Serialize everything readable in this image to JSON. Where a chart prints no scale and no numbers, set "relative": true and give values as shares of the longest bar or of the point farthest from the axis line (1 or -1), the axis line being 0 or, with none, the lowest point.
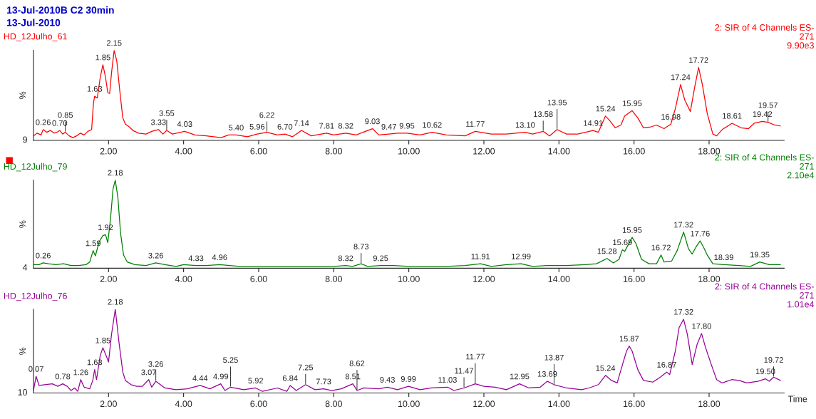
{
  "chart_data": [
    {
      "type": "line",
      "title": "13-Jul-2010B C2 30min",
      "subtitle": "13-Jul-2010",
      "ylabel": "%",
      "relative": true,
      "xlim": [
        0,
        20
      ],
      "xticks": [
        {
          "value": 2,
          "label": "2.00"
        },
        {
          "value": 4,
          "label": "4.00"
        },
        {
          "value": 6,
          "label": "6.00"
        },
        {
          "value": 8,
          "label": "8.00"
        },
        {
          "value": 10,
          "label": "10.00"
        },
        {
          "value": 12,
          "label": "12.00"
        },
        {
          "value": 14,
          "label": "14.00"
        },
        {
          "value": 16,
          "label": "16.00"
        },
        {
          "value": 18,
          "label": "18.00"
        }
      ],
      "series": [
        {
          "name": "HD_12Julho_61",
          "color": "#ff0000",
          "x": [
            0.0,
            0.1,
            0.2,
            0.26,
            0.35,
            0.45,
            0.55,
            0.63,
            0.7,
            0.78,
            0.85,
            0.95,
            1.05,
            1.15,
            1.25,
            1.35,
            1.45,
            1.55,
            1.6,
            1.63,
            1.7,
            1.78,
            1.85,
            1.92,
            1.98,
            2.03,
            2.08,
            2.15,
            2.22,
            2.3,
            2.38,
            2.45,
            2.55,
            2.65,
            2.8,
            3.0,
            3.15,
            3.33,
            3.45,
            3.55,
            3.7,
            4.03,
            4.3,
            4.6,
            5.0,
            5.2,
            5.4,
            5.7,
            5.96,
            6.22,
            6.5,
            6.7,
            6.9,
            7.14,
            7.4,
            7.81,
            8.0,
            8.32,
            8.6,
            9.03,
            9.2,
            9.47,
            9.7,
            9.95,
            10.3,
            10.62,
            11.0,
            11.5,
            11.77,
            12.2,
            12.6,
            13.1,
            13.3,
            13.58,
            13.75,
            13.95,
            14.2,
            14.5,
            14.91,
            15.05,
            15.24,
            15.35,
            15.5,
            15.65,
            15.75,
            15.95,
            16.1,
            16.25,
            16.45,
            16.6,
            16.8,
            16.98,
            17.1,
            17.24,
            17.35,
            17.5,
            17.62,
            17.72,
            17.82,
            17.95,
            18.1,
            18.2,
            18.35,
            18.61,
            18.85,
            19.05,
            19.2,
            19.42,
            19.57,
            19.75,
            19.9
          ],
          "values": [
            0.05,
            0.08,
            0.06,
            0.12,
            0.09,
            0.11,
            0.08,
            0.09,
            0.11,
            0.07,
            0.09,
            0.05,
            0.03,
            0.05,
            0.08,
            0.06,
            0.1,
            0.12,
            0.42,
            0.49,
            0.47,
            0.7,
            0.84,
            0.7,
            0.53,
            0.52,
            0.75,
            1.0,
            0.88,
            0.55,
            0.25,
            0.18,
            0.15,
            0.11,
            0.08,
            0.07,
            0.1,
            0.12,
            0.07,
            0.11,
            0.07,
            0.1,
            0.06,
            0.05,
            0.03,
            0.06,
            0.06,
            0.04,
            0.07,
            0.09,
            0.06,
            0.07,
            0.04,
            0.11,
            0.05,
            0.08,
            0.06,
            0.08,
            0.06,
            0.13,
            0.06,
            0.07,
            0.08,
            0.08,
            0.06,
            0.09,
            0.06,
            0.05,
            0.1,
            0.07,
            0.07,
            0.09,
            0.07,
            0.1,
            0.05,
            0.12,
            0.07,
            0.07,
            0.11,
            0.09,
            0.27,
            0.22,
            0.14,
            0.17,
            0.27,
            0.33,
            0.25,
            0.14,
            0.15,
            0.17,
            0.13,
            0.18,
            0.35,
            0.62,
            0.45,
            0.32,
            0.6,
            0.81,
            0.62,
            0.3,
            0.07,
            0.05,
            0.12,
            0.19,
            0.14,
            0.13,
            0.19,
            0.21,
            0.2,
            0.17,
            0.16
          ]
        }
      ],
      "annotations": [
        "2: SIR of 4 Channels ES-\n271\n9.90e3",
        "9",
        {
          "text": "0.26",
          "x": 0.26,
          "y": 0.12
        },
        {
          "text": "0.70",
          "x": 0.7,
          "y": 0.11
        },
        {
          "text": "0.85",
          "x": 0.85,
          "y": 0.09
        },
        {
          "text": "1.63",
          "x": 1.63,
          "y": 0.49
        },
        {
          "text": "1.85",
          "x": 1.85,
          "y": 0.84
        },
        {
          "text": "2.15",
          "x": 2.15,
          "y": 1.0
        },
        {
          "text": "3.33",
          "x": 3.33,
          "y": 0.12
        },
        {
          "text": "3.55",
          "x": 3.55,
          "y": 0.11
        },
        {
          "text": "4.03",
          "x": 4.03,
          "y": 0.1
        },
        {
          "text": "5.40",
          "x": 5.4,
          "y": 0.06
        },
        {
          "text": "5.96",
          "x": 5.96,
          "y": 0.07
        },
        {
          "text": "6.22",
          "x": 6.22,
          "y": 0.09
        },
        {
          "text": "6.70",
          "x": 6.7,
          "y": 0.07
        },
        {
          "text": "7.14",
          "x": 7.14,
          "y": 0.11
        },
        {
          "text": "7.81",
          "x": 7.81,
          "y": 0.08
        },
        {
          "text": "8.32",
          "x": 8.32,
          "y": 0.08
        },
        {
          "text": "9.03",
          "x": 9.03,
          "y": 0.13
        },
        {
          "text": "9.47",
          "x": 9.47,
          "y": 0.07
        },
        {
          "text": "9.95",
          "x": 9.95,
          "y": 0.08
        },
        {
          "text": "10.62",
          "x": 10.62,
          "y": 0.09
        },
        {
          "text": "11.77",
          "x": 11.77,
          "y": 0.1
        },
        {
          "text": "13.10",
          "x": 13.1,
          "y": 0.09
        },
        {
          "text": "13.58",
          "x": 13.58,
          "y": 0.1
        },
        {
          "text": "13.95",
          "x": 13.95,
          "y": 0.12
        },
        {
          "text": "14.91",
          "x": 14.91,
          "y": 0.11
        },
        {
          "text": "15.24",
          "x": 15.24,
          "y": 0.27
        },
        {
          "text": "15.95",
          "x": 15.95,
          "y": 0.33
        },
        {
          "text": "16.98",
          "x": 16.98,
          "y": 0.18
        },
        {
          "text": "17.24",
          "x": 17.24,
          "y": 0.62
        },
        {
          "text": "17.72",
          "x": 17.72,
          "y": 0.81
        },
        {
          "text": "18.61",
          "x": 18.61,
          "y": 0.19
        },
        {
          "text": "19.42",
          "x": 19.42,
          "y": 0.21
        },
        {
          "text": "19.57",
          "x": 19.57,
          "y": 0.2
        }
      ]
    },
    {
      "type": "line",
      "ylabel": "%",
      "relative": true,
      "xlim": [
        0,
        20
      ],
      "xticks": [
        {
          "value": 2,
          "label": "2.00"
        },
        {
          "value": 4,
          "label": "4.00"
        },
        {
          "value": 6,
          "label": "6.00"
        },
        {
          "value": 8,
          "label": "8.00"
        },
        {
          "value": 10,
          "label": "10.00"
        },
        {
          "value": 12,
          "label": "12.00"
        },
        {
          "value": 14,
          "label": "14.00"
        },
        {
          "value": 16,
          "label": "16.00"
        },
        {
          "value": 18,
          "label": "18.00"
        }
      ],
      "series": [
        {
          "name": "HD_12Julho_79",
          "color": "#008000",
          "x": [
            0.0,
            0.15,
            0.26,
            0.4,
            0.6,
            0.8,
            1.0,
            1.2,
            1.4,
            1.5,
            1.59,
            1.65,
            1.75,
            1.85,
            1.92,
            1.98,
            2.05,
            2.12,
            2.18,
            2.25,
            2.32,
            2.4,
            2.5,
            2.7,
            3.0,
            3.26,
            3.5,
            3.8,
            4.0,
            4.33,
            4.6,
            4.96,
            5.5,
            6.0,
            6.5,
            7.0,
            7.5,
            8.0,
            8.32,
            8.5,
            8.73,
            8.9,
            9.25,
            9.6,
            10.0,
            10.5,
            11.0,
            11.5,
            11.91,
            12.2,
            12.6,
            12.99,
            13.3,
            13.7,
            14.2,
            14.7,
            15.0,
            15.28,
            15.45,
            15.6,
            15.69,
            15.75,
            15.95,
            16.05,
            16.2,
            16.4,
            16.6,
            16.72,
            16.8,
            17.0,
            17.15,
            17.32,
            17.45,
            17.55,
            17.65,
            17.76,
            17.85,
            17.95,
            18.1,
            18.39,
            18.8,
            19.1,
            19.35,
            19.6,
            19.9
          ],
          "values": [
            0.04,
            0.04,
            0.06,
            0.05,
            0.04,
            0.05,
            0.03,
            0.03,
            0.04,
            0.07,
            0.2,
            0.14,
            0.3,
            0.37,
            0.38,
            0.29,
            0.55,
            0.9,
            1.0,
            0.8,
            0.4,
            0.15,
            0.07,
            0.04,
            0.03,
            0.06,
            0.04,
            0.02,
            0.04,
            0.03,
            0.03,
            0.04,
            0.02,
            0.02,
            0.02,
            0.02,
            0.02,
            0.02,
            0.03,
            0.02,
            0.05,
            0.02,
            0.03,
            0.03,
            0.02,
            0.02,
            0.02,
            0.03,
            0.05,
            0.02,
            0.04,
            0.05,
            0.02,
            0.03,
            0.03,
            0.04,
            0.05,
            0.11,
            0.06,
            0.1,
            0.21,
            0.19,
            0.35,
            0.28,
            0.1,
            0.05,
            0.05,
            0.15,
            0.07,
            0.08,
            0.2,
            0.41,
            0.22,
            0.16,
            0.24,
            0.31,
            0.24,
            0.15,
            0.05,
            0.04,
            0.03,
            0.02,
            0.07,
            0.04,
            0.04
          ]
        }
      ],
      "annotations": [
        "2: SIR of 4 Channels ES-\n271\n2.10e4",
        "4",
        {
          "text": "0.26",
          "x": 0.26,
          "y": 0.06
        },
        {
          "text": "1.59",
          "x": 1.59,
          "y": 0.2
        },
        {
          "text": "1.92",
          "x": 1.92,
          "y": 0.38
        },
        {
          "text": "2.18",
          "x": 2.18,
          "y": 1.0
        },
        {
          "text": "3.26",
          "x": 3.26,
          "y": 0.06
        },
        {
          "text": "4.33",
          "x": 4.33,
          "y": 0.03
        },
        {
          "text": "4.96",
          "x": 4.96,
          "y": 0.04
        },
        {
          "text": "8.32",
          "x": 8.32,
          "y": 0.03
        },
        {
          "text": "8.73",
          "x": 8.73,
          "y": 0.05
        },
        {
          "text": "9.25",
          "x": 9.25,
          "y": 0.03
        },
        {
          "text": "11.91",
          "x": 11.91,
          "y": 0.05
        },
        {
          "text": "12.99",
          "x": 12.99,
          "y": 0.05
        },
        {
          "text": "15.28",
          "x": 15.28,
          "y": 0.11
        },
        {
          "text": "15.69",
          "x": 15.69,
          "y": 0.21
        },
        {
          "text": "15.95",
          "x": 15.95,
          "y": 0.35
        },
        {
          "text": "16.72",
          "x": 16.72,
          "y": 0.15
        },
        {
          "text": "17.32",
          "x": 17.32,
          "y": 0.41
        },
        {
          "text": "17.76",
          "x": 17.76,
          "y": 0.31
        },
        {
          "text": "18.39",
          "x": 18.39,
          "y": 0.04
        },
        {
          "text": "19.35",
          "x": 19.35,
          "y": 0.07
        }
      ]
    },
    {
      "type": "line",
      "ylabel": "%",
      "xlabel": "Time",
      "relative": true,
      "xlim": [
        0,
        20
      ],
      "xticks": [
        {
          "value": 2,
          "label": "2.00"
        },
        {
          "value": 4,
          "label": "4.00"
        },
        {
          "value": 6,
          "label": "6.00"
        },
        {
          "value": 8,
          "label": "8.00"
        },
        {
          "value": 10,
          "label": "10.00"
        },
        {
          "value": 12,
          "label": "12.00"
        },
        {
          "value": 14,
          "label": "14.00"
        },
        {
          "value": 16,
          "label": "16.00"
        },
        {
          "value": 18,
          "label": "18.00"
        }
      ],
      "series": [
        {
          "name": "HD_12Julho_76",
          "color": "#990099",
          "x": [
            0.0,
            0.07,
            0.15,
            0.3,
            0.5,
            0.65,
            0.78,
            0.9,
            1.0,
            1.1,
            1.18,
            1.26,
            1.35,
            1.5,
            1.58,
            1.63,
            1.68,
            1.78,
            1.85,
            1.95,
            2.0,
            2.08,
            2.18,
            2.28,
            2.38,
            2.45,
            2.6,
            2.75,
            2.9,
            3.07,
            3.15,
            3.26,
            3.5,
            3.8,
            4.1,
            4.44,
            4.7,
            4.99,
            5.1,
            5.25,
            5.6,
            5.92,
            6.1,
            6.5,
            6.75,
            6.84,
            7.0,
            7.25,
            7.5,
            7.73,
            7.95,
            8.2,
            8.51,
            8.62,
            8.8,
            9.2,
            9.43,
            9.7,
            9.99,
            10.3,
            10.6,
            11.03,
            11.2,
            11.47,
            11.77,
            12.0,
            12.3,
            12.6,
            12.95,
            13.2,
            13.5,
            13.69,
            13.87,
            14.2,
            14.6,
            14.8,
            15.05,
            15.24,
            15.4,
            15.55,
            15.7,
            15.8,
            15.87,
            15.95,
            16.1,
            16.25,
            16.5,
            16.7,
            16.87,
            16.95,
            17.1,
            17.2,
            17.32,
            17.42,
            17.55,
            17.68,
            17.8,
            17.9,
            18.05,
            18.2,
            18.35,
            18.6,
            18.8,
            19.0,
            19.3,
            19.5,
            19.6,
            19.72,
            19.9
          ],
          "values": [
            0.03,
            0.2,
            0.09,
            0.1,
            0.11,
            0.08,
            0.11,
            0.08,
            0.03,
            0.06,
            0.02,
            0.16,
            0.07,
            0.05,
            0.15,
            0.28,
            0.16,
            0.45,
            0.54,
            0.43,
            0.37,
            0.7,
            1.0,
            0.6,
            0.25,
            0.15,
            0.1,
            0.08,
            0.08,
            0.16,
            0.07,
            0.14,
            0.06,
            0.04,
            0.05,
            0.09,
            0.05,
            0.11,
            0.03,
            0.07,
            0.04,
            0.06,
            0.02,
            0.06,
            0.02,
            0.09,
            0.03,
            0.1,
            0.04,
            0.05,
            0.03,
            0.05,
            0.11,
            0.03,
            0.06,
            0.05,
            0.07,
            0.04,
            0.08,
            0.04,
            0.06,
            0.07,
            0.03,
            0.06,
            0.11,
            0.08,
            0.07,
            0.04,
            0.11,
            0.06,
            0.07,
            0.14,
            0.1,
            0.06,
            0.04,
            0.06,
            0.1,
            0.21,
            0.15,
            0.12,
            0.35,
            0.5,
            0.56,
            0.5,
            0.28,
            0.15,
            0.13,
            0.19,
            0.25,
            0.22,
            0.5,
            0.78,
            0.88,
            0.7,
            0.34,
            0.58,
            0.71,
            0.55,
            0.35,
            0.16,
            0.12,
            0.16,
            0.15,
            0.12,
            0.14,
            0.17,
            0.14,
            0.19,
            0.15
          ]
        }
      ],
      "annotations": [
        "2: SIR of 4 Channels ES-\n271\n1.01e4",
        "10",
        {
          "text": "0.07",
          "x": 0.07,
          "y": 0.2
        },
        {
          "text": "0.78",
          "x": 0.78,
          "y": 0.11
        },
        {
          "text": "1.26",
          "x": 1.26,
          "y": 0.16
        },
        {
          "text": "1.63",
          "x": 1.63,
          "y": 0.28
        },
        {
          "text": "1.85",
          "x": 1.85,
          "y": 0.54
        },
        {
          "text": "2.18",
          "x": 2.18,
          "y": 1.0
        },
        {
          "text": "3.07",
          "x": 3.07,
          "y": 0.16
        },
        {
          "text": "3.26",
          "x": 3.26,
          "y": 0.14
        },
        {
          "text": "4.44",
          "x": 4.44,
          "y": 0.09
        },
        {
          "text": "4.99",
          "x": 4.99,
          "y": 0.11
        },
        {
          "text": "5.25",
          "x": 5.25,
          "y": 0.07
        },
        {
          "text": "5.92",
          "x": 5.92,
          "y": 0.06
        },
        {
          "text": "6.84",
          "x": 6.84,
          "y": 0.09
        },
        {
          "text": "7.25",
          "x": 7.25,
          "y": 0.1
        },
        {
          "text": "7.73",
          "x": 7.73,
          "y": 0.05
        },
        {
          "text": "8.51",
          "x": 8.51,
          "y": 0.11
        },
        {
          "text": "8.62",
          "x": 8.62,
          "y": 0.03
        },
        {
          "text": "9.43",
          "x": 9.43,
          "y": 0.07
        },
        {
          "text": "9.99",
          "x": 9.99,
          "y": 0.08
        },
        {
          "text": "11.03",
          "x": 11.03,
          "y": 0.07
        },
        {
          "text": "11.47",
          "x": 11.47,
          "y": 0.06
        },
        {
          "text": "11.77",
          "x": 11.77,
          "y": 0.11
        },
        {
          "text": "12.95",
          "x": 12.95,
          "y": 0.11
        },
        {
          "text": "13.69",
          "x": 13.69,
          "y": 0.14
        },
        {
          "text": "13.87",
          "x": 13.87,
          "y": 0.1
        },
        {
          "text": "15.24",
          "x": 15.24,
          "y": 0.21
        },
        {
          "text": "15.87",
          "x": 15.87,
          "y": 0.56
        },
        {
          "text": "16.87",
          "x": 16.87,
          "y": 0.25
        },
        {
          "text": "17.32",
          "x": 17.32,
          "y": 0.88
        },
        {
          "text": "17.80",
          "x": 17.8,
          "y": 0.71
        },
        {
          "text": "19.50",
          "x": 19.5,
          "y": 0.17
        },
        {
          "text": "19.72",
          "x": 19.72,
          "y": 0.19
        }
      ]
    }
  ]
}
